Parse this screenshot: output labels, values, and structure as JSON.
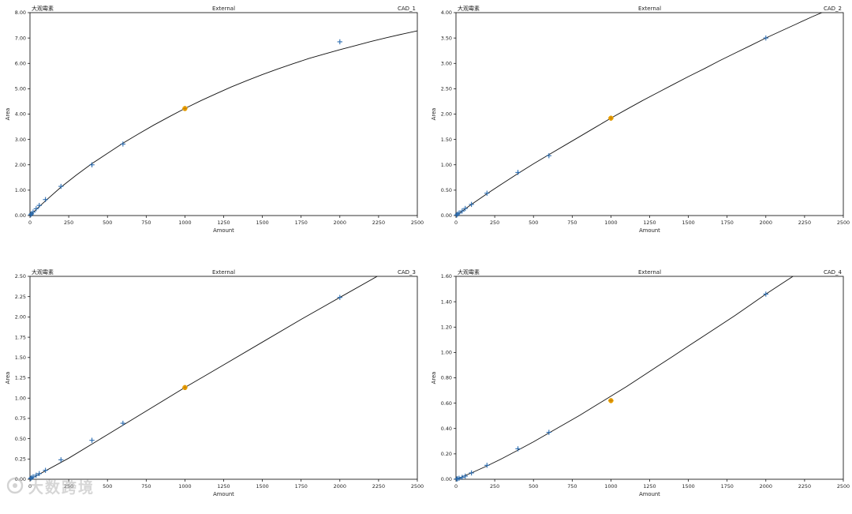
{
  "colors": {
    "curve": "#111111",
    "point": "#2b6cb0",
    "highlight": "#f0a500",
    "axis": "#000000"
  },
  "chart_data": [
    {
      "type": "scatter",
      "compound": "大观霉素",
      "method": "External",
      "detector": "CAD_1",
      "xlabel": "Amount",
      "ylabel": "Area",
      "xlim": [
        0,
        2500
      ],
      "ylim": [
        0,
        8
      ],
      "xticks": [
        "0",
        "250",
        "500",
        "750",
        "1000",
        "1250",
        "1500",
        "1750",
        "2000",
        "2250",
        "2500"
      ],
      "yticks": [
        "0.00",
        "1.00",
        "2.00",
        "3.00",
        "4.00",
        "5.00",
        "6.00",
        "7.00",
        "8.00"
      ],
      "points": [
        [
          5,
          0.03
        ],
        [
          10,
          0.07
        ],
        [
          20,
          0.14
        ],
        [
          40,
          0.27
        ],
        [
          60,
          0.4
        ],
        [
          100,
          0.63
        ],
        [
          200,
          1.15
        ],
        [
          400,
          2.0
        ],
        [
          600,
          2.82
        ],
        [
          2000,
          6.85
        ]
      ],
      "highlight_points": [
        [
          1000,
          4.22
        ]
      ],
      "fit_curve": [
        [
          0,
          0.0
        ],
        [
          50,
          0.3
        ],
        [
          100,
          0.58
        ],
        [
          200,
          1.12
        ],
        [
          300,
          1.6
        ],
        [
          400,
          2.05
        ],
        [
          500,
          2.45
        ],
        [
          600,
          2.85
        ],
        [
          700,
          3.22
        ],
        [
          800,
          3.57
        ],
        [
          900,
          3.9
        ],
        [
          1000,
          4.22
        ],
        [
          1100,
          4.52
        ],
        [
          1200,
          4.8
        ],
        [
          1300,
          5.07
        ],
        [
          1400,
          5.32
        ],
        [
          1500,
          5.56
        ],
        [
          1600,
          5.78
        ],
        [
          1700,
          5.99
        ],
        [
          1800,
          6.19
        ],
        [
          1900,
          6.37
        ],
        [
          2000,
          6.54
        ],
        [
          2100,
          6.7
        ],
        [
          2200,
          6.86
        ],
        [
          2300,
          7.01
        ],
        [
          2400,
          7.15
        ],
        [
          2500,
          7.28
        ]
      ]
    },
    {
      "type": "scatter",
      "compound": "大观霉素",
      "method": "External",
      "detector": "CAD_2",
      "xlabel": "Amount",
      "ylabel": "Area",
      "xlim": [
        0,
        2500
      ],
      "ylim": [
        0,
        4
      ],
      "xticks": [
        "0",
        "250",
        "500",
        "750",
        "1000",
        "1250",
        "1500",
        "1750",
        "2000",
        "2250",
        "2500"
      ],
      "yticks": [
        "0.00",
        "0.50",
        "1.00",
        "1.50",
        "2.00",
        "2.50",
        "3.00",
        "3.50",
        "4.00"
      ],
      "points": [
        [
          5,
          0.01
        ],
        [
          10,
          0.03
        ],
        [
          20,
          0.05
        ],
        [
          40,
          0.09
        ],
        [
          60,
          0.14
        ],
        [
          100,
          0.22
        ],
        [
          200,
          0.44
        ],
        [
          400,
          0.85
        ],
        [
          600,
          1.18
        ],
        [
          2000,
          3.5
        ]
      ],
      "highlight_points": [
        [
          1000,
          1.92
        ]
      ],
      "fit_curve": [
        [
          0,
          0.0
        ],
        [
          100,
          0.22
        ],
        [
          200,
          0.43
        ],
        [
          300,
          0.63
        ],
        [
          400,
          0.83
        ],
        [
          500,
          1.02
        ],
        [
          600,
          1.2
        ],
        [
          700,
          1.38
        ],
        [
          800,
          1.56
        ],
        [
          900,
          1.74
        ],
        [
          1000,
          1.92
        ],
        [
          1100,
          2.09
        ],
        [
          1200,
          2.26
        ],
        [
          1300,
          2.42
        ],
        [
          1400,
          2.58
        ],
        [
          1500,
          2.74
        ],
        [
          1600,
          2.89
        ],
        [
          1700,
          3.05
        ],
        [
          1800,
          3.2
        ],
        [
          1900,
          3.35
        ],
        [
          2000,
          3.5
        ],
        [
          2100,
          3.64
        ],
        [
          2200,
          3.78
        ],
        [
          2300,
          3.92
        ],
        [
          2400,
          4.05
        ]
      ]
    },
    {
      "type": "scatter",
      "compound": "大观霉素",
      "method": "External",
      "detector": "CAD_3",
      "xlabel": "Amount",
      "ylabel": "Area",
      "xlim": [
        0,
        2500
      ],
      "ylim": [
        0,
        2.5
      ],
      "xticks": [
        "0",
        "250",
        "500",
        "750",
        "1000",
        "1250",
        "1500",
        "1750",
        "2000",
        "2250",
        "2500"
      ],
      "yticks": [
        "0.00",
        "0.25",
        "0.50",
        "0.75",
        "1.00",
        "1.25",
        "1.50",
        "1.75",
        "2.00",
        "2.25",
        "2.50"
      ],
      "points": [
        [
          5,
          0.01
        ],
        [
          10,
          0.02
        ],
        [
          20,
          0.03
        ],
        [
          40,
          0.05
        ],
        [
          60,
          0.07
        ],
        [
          100,
          0.11
        ],
        [
          200,
          0.24
        ],
        [
          400,
          0.48
        ],
        [
          600,
          0.69
        ],
        [
          2000,
          2.24
        ]
      ],
      "highlight_points": [
        [
          1000,
          1.13
        ]
      ],
      "fit_curve": [
        [
          0,
          0.0
        ],
        [
          250,
          0.26
        ],
        [
          500,
          0.55
        ],
        [
          750,
          0.84
        ],
        [
          1000,
          1.13
        ],
        [
          1250,
          1.41
        ],
        [
          1500,
          1.69
        ],
        [
          1750,
          1.97
        ],
        [
          2000,
          2.24
        ],
        [
          2250,
          2.51
        ]
      ]
    },
    {
      "type": "scatter",
      "compound": "大观霉素",
      "method": "External",
      "detector": "CAD_4",
      "xlabel": "Amount",
      "ylabel": "Area",
      "xlim": [
        0,
        2500
      ],
      "ylim": [
        0,
        1.6
      ],
      "xticks": [
        "0",
        "250",
        "500",
        "750",
        "1000",
        "1250",
        "1500",
        "1750",
        "2000",
        "2250",
        "2500"
      ],
      "yticks": [
        "0.00",
        "0.20",
        "0.40",
        "0.60",
        "0.80",
        "1.00",
        "1.20",
        "1.40",
        "1.60"
      ],
      "points": [
        [
          5,
          0.002
        ],
        [
          10,
          0.004
        ],
        [
          20,
          0.008
        ],
        [
          40,
          0.015
        ],
        [
          60,
          0.025
        ],
        [
          100,
          0.05
        ],
        [
          200,
          0.11
        ],
        [
          400,
          0.24
        ],
        [
          600,
          0.37
        ],
        [
          2000,
          1.46
        ]
      ],
      "highlight_points": [
        [
          1000,
          0.62
        ]
      ],
      "fit_curve": [
        [
          0,
          0.0
        ],
        [
          100,
          0.05
        ],
        [
          200,
          0.105
        ],
        [
          300,
          0.165
        ],
        [
          400,
          0.23
        ],
        [
          500,
          0.295
        ],
        [
          600,
          0.365
        ],
        [
          700,
          0.435
        ],
        [
          800,
          0.505
        ],
        [
          900,
          0.58
        ],
        [
          1000,
          0.655
        ],
        [
          1100,
          0.73
        ],
        [
          1200,
          0.81
        ],
        [
          1300,
          0.89
        ],
        [
          1400,
          0.97
        ],
        [
          1500,
          1.05
        ],
        [
          1600,
          1.13
        ],
        [
          1700,
          1.21
        ],
        [
          1800,
          1.29
        ],
        [
          1900,
          1.375
        ],
        [
          2000,
          1.46
        ],
        [
          2100,
          1.54
        ],
        [
          2200,
          1.62
        ]
      ]
    }
  ],
  "watermark": {
    "text": "大数跨境"
  }
}
